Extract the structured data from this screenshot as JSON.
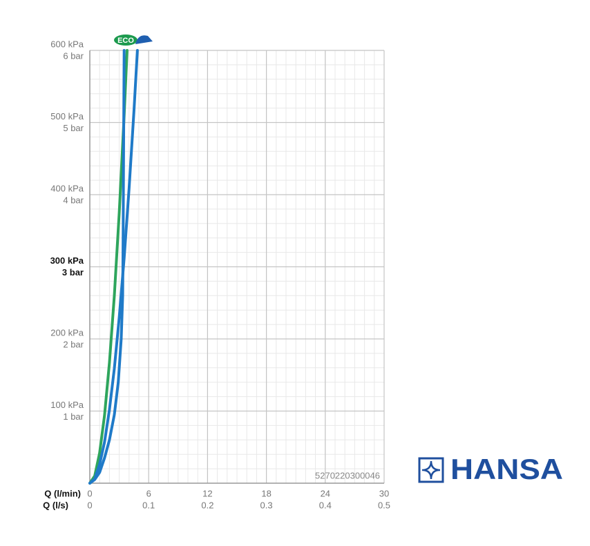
{
  "chart_data": {
    "type": "line",
    "xlabel": "Q (l/min)",
    "x2label": "Q (l/s)",
    "xlim": [
      0,
      30
    ],
    "xticks": [
      0,
      6,
      12,
      18,
      24,
      30
    ],
    "x2lim": [
      0,
      0.5
    ],
    "x2ticks": [
      0,
      0.1,
      0.2,
      0.3,
      0.4,
      0.5
    ],
    "ylim": [
      0,
      600
    ],
    "yticks": [
      {
        "value": 100,
        "label": "100 kPa"
      },
      {
        "value": 200,
        "label": "200 kPa"
      },
      {
        "value": 300,
        "label": "300 kPa"
      },
      {
        "value": 400,
        "label": "400 kPa"
      },
      {
        "value": 500,
        "label": "500 kPa"
      },
      {
        "value": 600,
        "label": "600 kPa"
      }
    ],
    "y2lim": [
      0,
      6
    ],
    "y2ticks": [
      {
        "value": 1,
        "label": "1 bar"
      },
      {
        "value": 2,
        "label": "2 bar"
      },
      {
        "value": 3,
        "label": "3 bar"
      },
      {
        "value": 4,
        "label": "4 bar"
      },
      {
        "value": 5,
        "label": "5 bar"
      },
      {
        "value": 6,
        "label": "6 bar"
      }
    ],
    "bold_ytick": 300,
    "grid": true,
    "minor_xstep": 1,
    "minor_ystep": 20,
    "series": [
      {
        "color": "#2ea55c",
        "x": [
          0,
          0.5,
          1,
          1.5,
          2,
          2.5,
          3,
          3.5,
          3.8
        ],
        "values": [
          0,
          10,
          42,
          94,
          167,
          260,
          375,
          510,
          600
        ]
      },
      {
        "color": "#1f7ac8",
        "x": [
          0,
          0.5,
          1,
          1.5,
          2,
          2.5,
          3,
          3.5,
          4,
          4.5,
          4.85
        ],
        "values": [
          0,
          6,
          26,
          57,
          102,
          159,
          230,
          312,
          408,
          516,
          600
        ]
      },
      {
        "color": "#1f7ac8",
        "x": [
          0,
          0.5,
          1,
          1.5,
          2,
          2.5,
          2.9,
          3.2,
          3.35,
          3.4,
          3.45,
          3.5
        ],
        "values": [
          0,
          5,
          15,
          35,
          60,
          95,
          140,
          200,
          260,
          350,
          480,
          600
        ]
      }
    ],
    "watermark": "5270220300046",
    "badge": "ECO"
  },
  "brand": "HANSA"
}
